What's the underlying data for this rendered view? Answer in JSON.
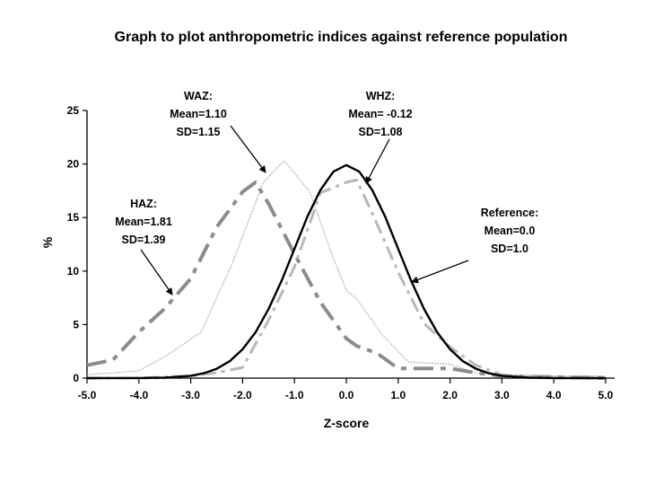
{
  "chart_data": {
    "type": "line",
    "title": "Graph to plot anthropometric indices against reference population",
    "xlabel": "Z-score",
    "ylabel": "%",
    "xlim": [
      -5,
      5
    ],
    "ylim": [
      0,
      25
    ],
    "xticks": [
      "-5.0",
      "-4.0",
      "-3.0",
      "-2.0",
      "-1.0",
      "0.0",
      "1.0",
      "2.0",
      "3.0",
      "4.0",
      "5.0"
    ],
    "yticks": [
      "0",
      "5",
      "10",
      "15",
      "20",
      "25"
    ],
    "grid": false,
    "legend": "none",
    "series": [
      {
        "name": "Reference",
        "style": "solid",
        "color": "#000000",
        "x": [
          -5,
          -4,
          -3.5,
          -3,
          -2.75,
          -2.5,
          -2.25,
          -2,
          -1.75,
          -1.5,
          -1.25,
          -1,
          -0.75,
          -0.5,
          -0.25,
          0,
          0.25,
          0.5,
          0.75,
          1,
          1.25,
          1.5,
          1.75,
          2,
          2.25,
          2.5,
          2.75,
          3,
          3.5,
          4,
          5
        ],
        "y": [
          0,
          0.01,
          0.04,
          0.22,
          0.45,
          0.87,
          1.58,
          2.69,
          4.29,
          6.45,
          9.08,
          12.07,
          15.08,
          17.56,
          19.29,
          19.9,
          19.29,
          17.56,
          15.08,
          12.07,
          9.08,
          6.45,
          4.29,
          2.69,
          1.58,
          0.87,
          0.45,
          0.22,
          0.04,
          0.01,
          0
        ]
      },
      {
        "name": "WHZ",
        "style": "dash-dot",
        "color": "#b8b8b8",
        "x": [
          -5,
          -4,
          -3,
          -2.5,
          -2,
          -1.5,
          -1,
          -0.5,
          0,
          0.2,
          0.5,
          1,
          1.5,
          2,
          2.5,
          3,
          4,
          5
        ],
        "y": [
          0,
          0,
          0.2,
          0.5,
          1.0,
          5.4,
          10.4,
          17.3,
          18.3,
          18.5,
          15.4,
          9.9,
          5.1,
          2.9,
          1.2,
          0.3,
          0,
          0
        ]
      },
      {
        "name": "WAZ",
        "style": "dotted",
        "color": "#999999",
        "x": [
          -5,
          -4,
          -3.5,
          -2.8,
          -2.2,
          -1.6,
          -1.2,
          -0.7,
          -0.3,
          0,
          0.2,
          0.7,
          1.2,
          1.6,
          2,
          2.5,
          3,
          4,
          5
        ],
        "y": [
          0.3,
          0.7,
          2.0,
          4.3,
          10.7,
          18.3,
          20.3,
          17.4,
          11.8,
          8.2,
          7.4,
          4.0,
          1.5,
          1.4,
          1.3,
          0.5,
          0.3,
          0.2,
          0.2
        ]
      },
      {
        "name": "HAZ",
        "style": "long-dash-dot",
        "color": "#8c8c8c",
        "x": [
          -5,
          -4.5,
          -4,
          -3.5,
          -3,
          -2.5,
          -2,
          -1.75,
          -1.5,
          -1,
          -0.5,
          0,
          0.2,
          0.6,
          1,
          1.5,
          2,
          2.5,
          3,
          4,
          5
        ],
        "y": [
          1.2,
          1.7,
          4.3,
          6.5,
          9.3,
          14.1,
          17.4,
          18.3,
          16.3,
          11.6,
          7.1,
          3.7,
          3.0,
          2.3,
          0.9,
          0.9,
          0.9,
          0.5,
          0.2,
          0.1,
          0
        ]
      }
    ],
    "annotations": [
      {
        "id": "waz",
        "lines": [
          "WAZ:",
          "Mean=1.10",
          "SD=1.15"
        ]
      },
      {
        "id": "whz",
        "lines": [
          "WHZ:",
          "Mean= -0.12",
          "SD=1.08"
        ]
      },
      {
        "id": "haz",
        "lines": [
          "HAZ:",
          "Mean=1.81",
          "SD=1.39"
        ]
      },
      {
        "id": "ref",
        "lines": [
          "Reference:",
          "Mean=0.0",
          "SD=1.0"
        ]
      }
    ]
  }
}
